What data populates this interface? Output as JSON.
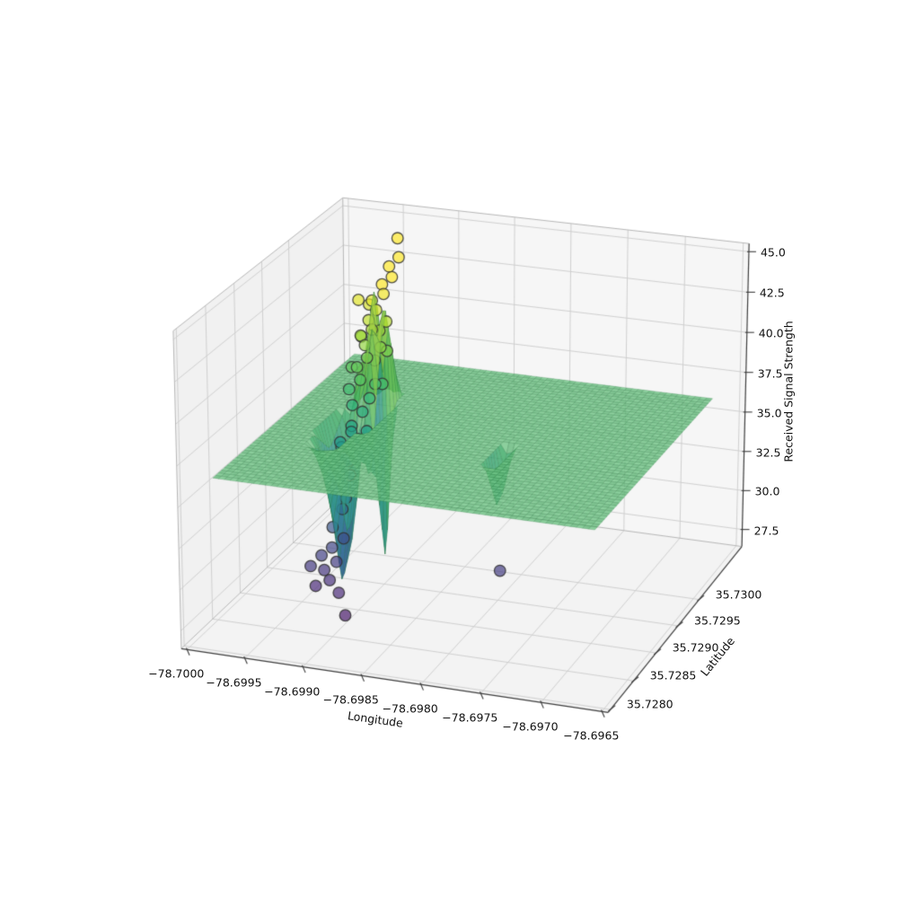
{
  "chart_data": {
    "type": "3d-scatter-with-interpolated-surface",
    "title": "",
    "xlabel": "Longitude",
    "ylabel": "Latitude",
    "zlabel": "Received Signal Strength",
    "xlim": [
      -78.70005,
      -78.69645
    ],
    "ylim": [
      35.72795,
      35.73105
    ],
    "zlim": [
      26.4,
      45.5
    ],
    "x_tick_values": [
      -78.7,
      -78.6995,
      -78.699,
      -78.6985,
      -78.698,
      -78.6975,
      -78.697,
      -78.6965
    ],
    "x_tick_labels": [
      "−78.7000",
      "−78.6995",
      "−78.6990",
      "−78.6985",
      "−78.6980",
      "−78.6975",
      "−78.6970",
      "−78.6965"
    ],
    "y_tick_values": [
      35.728,
      35.7285,
      35.729,
      35.7295,
      35.73
    ],
    "y_tick_labels": [
      "35.7280",
      "35.7285",
      "35.7290",
      "35.7295",
      "35.7300"
    ],
    "z_tick_values": [
      27.5,
      30.0,
      32.5,
      35.0,
      37.5,
      40.0,
      42.5,
      45.0
    ],
    "z_tick_labels": [
      "27.5",
      "30.0",
      "32.5",
      "35.0",
      "37.5",
      "40.0",
      "42.5",
      "45.0"
    ],
    "colormap": {
      "name": "viridis",
      "stops": [
        "#440154",
        "#482878",
        "#3e4989",
        "#31688e",
        "#26828e",
        "#1f9e89",
        "#35b779",
        "#6ece58",
        "#b5de2b",
        "#fde725"
      ],
      "vmin": 26,
      "vmax": 43
    },
    "surface": {
      "lon_range": [
        -78.69987,
        -78.69667
      ],
      "lat_range": [
        35.7282,
        35.73086
      ],
      "base_z": 36.2,
      "grid": [
        64,
        52
      ],
      "spikes": [
        {
          "lon": -78.6993,
          "lat": 35.72968,
          "peak": 42.0,
          "w": 6e-05,
          "h": 0.00028
        },
        {
          "lon": -78.69923,
          "lat": 35.72976,
          "peak": 43.5,
          "w": 5e-05,
          "h": 0.00026
        },
        {
          "lon": -78.69935,
          "lat": 35.72984,
          "peak": 41.0,
          "w": 6e-05,
          "h": 0.00026
        },
        {
          "lon": -78.69918,
          "lat": 35.7299,
          "peak": 44.6,
          "w": 5e-05,
          "h": 0.0003
        },
        {
          "lon": -78.69927,
          "lat": 35.72996,
          "peak": 43.0,
          "w": 5e-05,
          "h": 0.00026
        },
        {
          "lon": -78.69941,
          "lat": 35.7295,
          "peak": 31.0,
          "w": 9e-05,
          "h": 0.0003
        },
        {
          "lon": -78.69929,
          "lat": 35.72958,
          "peak": 30.0,
          "w": 0.0001,
          "h": 0.00032
        },
        {
          "lon": -78.69916,
          "lat": 35.72964,
          "peak": 31.5,
          "w": 8e-05,
          "h": 0.00028
        },
        {
          "lon": -78.69935,
          "lat": 35.72962,
          "peak": 32.2,
          "w": 8e-05,
          "h": 0.00026
        },
        {
          "lon": -78.69912,
          "lat": 35.7298,
          "peak": 27.8,
          "w": 3.5e-05,
          "h": 0.0002
        },
        {
          "lon": -78.69932,
          "lat": 35.72936,
          "peak": 28.2,
          "w": 0.00012,
          "h": 0.0004
        },
        {
          "lon": -78.6979,
          "lat": 35.72928,
          "peak": 31.5,
          "w": 6e-05,
          "h": 0.00024
        }
      ]
    },
    "points": [
      [
        -78.69932,
        35.72961,
        37.0
      ],
      [
        -78.69924,
        35.72963,
        36.6
      ],
      [
        -78.69937,
        35.72966,
        37.8
      ],
      [
        -78.69928,
        35.72968,
        38.4
      ],
      [
        -78.69919,
        35.72966,
        37.4
      ],
      [
        -78.69933,
        35.72973,
        39.0
      ],
      [
        -78.69925,
        35.72975,
        39.6
      ],
      [
        -78.69917,
        35.72973,
        38.1
      ],
      [
        -78.6994,
        35.72978,
        38.8
      ],
      [
        -78.69929,
        35.7298,
        40.2
      ],
      [
        -78.69921,
        35.72981,
        39.3
      ],
      [
        -78.69913,
        35.72978,
        38.0
      ],
      [
        -78.69935,
        35.72985,
        40.6
      ],
      [
        -78.69926,
        35.72987,
        41.0
      ],
      [
        -78.69918,
        35.72986,
        40.0
      ],
      [
        -78.69931,
        35.72992,
        41.4
      ],
      [
        -78.69922,
        35.72993,
        40.8
      ],
      [
        -78.69914,
        35.7299,
        39.7
      ],
      [
        -78.69938,
        35.72993,
        40.3
      ],
      [
        -78.69927,
        35.72998,
        41.9
      ],
      [
        -78.69919,
        35.73,
        41.2
      ],
      [
        -78.69933,
        35.73003,
        42.3
      ],
      [
        -78.69924,
        35.73006,
        42.7
      ],
      [
        -78.69944,
        35.73001,
        42.3
      ],
      [
        -78.69936,
        35.73004,
        42.0
      ],
      [
        -78.69928,
        35.73012,
        43.1
      ],
      [
        -78.69921,
        35.73016,
        43.5
      ],
      [
        -78.69927,
        35.73024,
        43.9
      ],
      [
        -78.69922,
        35.73032,
        44.3
      ],
      [
        -78.6993,
        35.73048,
        45.0
      ],
      [
        -78.6993,
        35.72955,
        35.9
      ],
      [
        -78.69922,
        35.7295,
        35.3
      ],
      [
        -78.69935,
        35.72946,
        34.8
      ],
      [
        -78.69926,
        35.7294,
        34.2
      ],
      [
        -78.69918,
        35.72958,
        35.6
      ],
      [
        -78.69928,
        35.7295,
        35.7
      ],
      [
        -78.69936,
        35.72946,
        35.1
      ],
      [
        -78.6993,
        35.72941,
        34.3
      ],
      [
        -78.69924,
        35.72938,
        33.4
      ],
      [
        -78.69934,
        35.72932,
        32.6
      ],
      [
        -78.69926,
        35.72927,
        31.6
      ],
      [
        -78.69932,
        35.72921,
        30.6
      ],
      [
        -78.69921,
        35.72918,
        30.1
      ],
      [
        -78.69929,
        35.72913,
        29.6
      ],
      [
        -78.69936,
        35.72908,
        29.2
      ],
      [
        -78.69922,
        35.72906,
        29.0
      ],
      [
        -78.6993,
        35.729,
        28.6
      ],
      [
        -78.69923,
        35.72895,
        28.2
      ],
      [
        -78.69933,
        35.7289,
        27.9
      ],
      [
        -78.69941,
        35.72898,
        28.8
      ],
      [
        -78.6991,
        35.72884,
        27.9
      ],
      [
        -78.69899,
        35.72872,
        27.0
      ],
      [
        -78.69927,
        35.72936,
        32.0
      ],
      [
        -78.6979,
        35.7293,
        29.0
      ]
    ]
  },
  "style": {
    "background": "#ffffff",
    "pane_left": "#f1f1f1",
    "pane_right": "#f6f6f6",
    "pane_floor": "#f3f3f3",
    "grid_line": "#cccccc",
    "pane_edge": "#b6b6b6",
    "spine": "#3d3d3d",
    "tick": "#3d3d3d",
    "text": "#111111",
    "surface_light": "#74c689",
    "surface_dark": "#67ba7c",
    "surface_stroke": "rgba(42,120,66,0.45)",
    "spike_up_base": "#44b364",
    "spike_up_tip": "#e0e332",
    "spike_down_base": "#3fae62",
    "spike_down_mid": "#2d8f93",
    "spike_down_tip": "#3a5f9b",
    "point_edge": "#333333"
  }
}
